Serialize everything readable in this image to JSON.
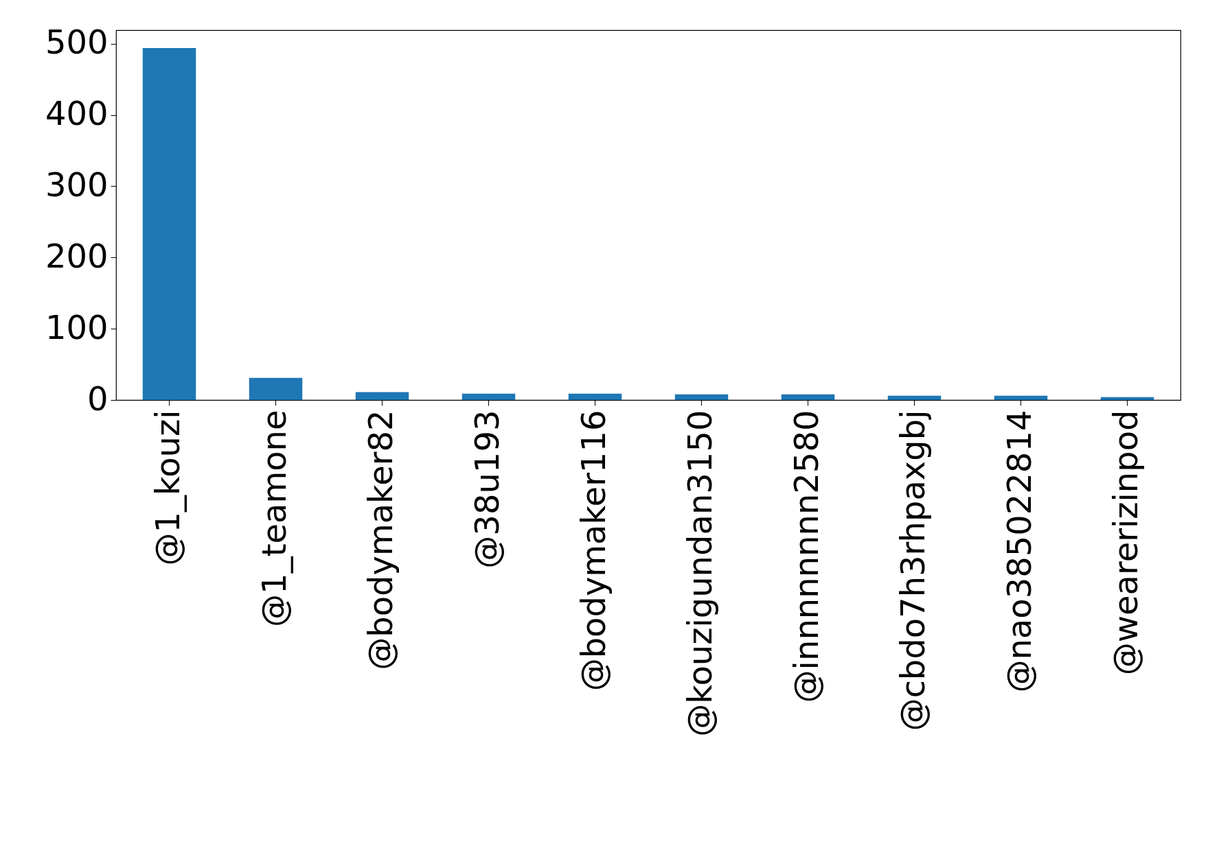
{
  "chart_data": {
    "type": "bar",
    "categories": [
      "@1_kouzi",
      "@1_teamone",
      "@bodymaker82",
      "@38u193",
      "@bodymaker116",
      "@kouzigundan3150",
      "@innnnnnnn2580",
      "@cbdo7h3rhpaxgbj",
      "@nao385022814",
      "@wearerizinpod"
    ],
    "series": [
      {
        "color": "#1f77b4",
        "values": [
          494,
          31,
          11,
          9,
          9,
          8,
          8,
          6,
          6,
          4
        ]
      }
    ],
    "ylim": [
      0,
      519
    ],
    "yticks": [
      0,
      100,
      200,
      300,
      400,
      500
    ],
    "grid": false,
    "legend": false
  }
}
